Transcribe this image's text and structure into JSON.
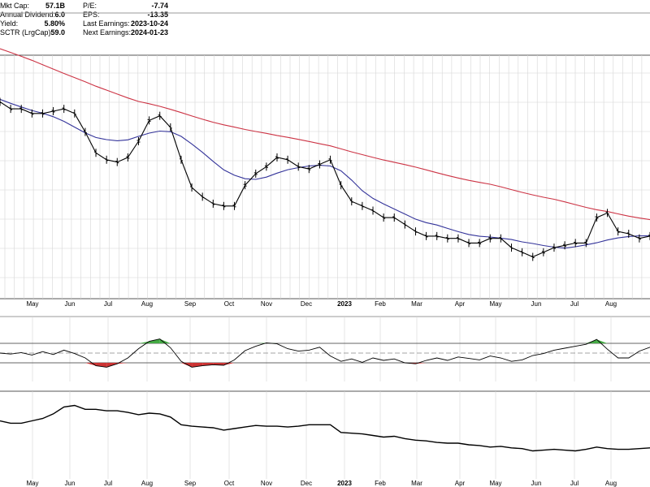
{
  "header": {
    "stats_left": [
      {
        "label": "Mkt Cap:",
        "value": "57.1B"
      },
      {
        "label": "Annual Dividend:",
        "value": "6.0"
      },
      {
        "label": "Yield:",
        "value": "5.80%"
      },
      {
        "label": "SCTR (LrgCap):",
        "value": "59.0"
      }
    ],
    "stats_right": [
      {
        "label": "P/E:",
        "value": "-7.74"
      },
      {
        "label": "EPS:",
        "value": "-13.35"
      },
      {
        "label": "Last Earnings:",
        "value": "2023-10-24"
      },
      {
        "label": "Next Earnings:",
        "value": "2024-01-23"
      }
    ]
  },
  "colors": {
    "price": "#000000",
    "ma_long": "#cc3344",
    "ma_short": "#33339a",
    "grid": "#d6d6d6",
    "osc_overbought_fill": "#44aa44",
    "osc_oversold_fill": "#cc3333"
  },
  "chart_data": [
    {
      "type": "line",
      "panel": "price",
      "x_labels": [
        "May",
        "Jun",
        "Jul",
        "Aug",
        "Sep",
        "Oct",
        "Nov",
        "Dec",
        "2023",
        "Feb",
        "Mar",
        "Apr",
        "May",
        "Jun",
        "Jul",
        "Aug"
      ],
      "x_label_bold": "2023",
      "ylim": [
        0,
        100
      ],
      "grid": true,
      "series": [
        {
          "values": [
            77,
            74,
            74,
            72,
            72,
            73,
            74,
            72,
            64,
            55,
            52,
            51,
            53,
            60,
            69,
            71,
            66,
            52,
            40,
            36,
            33,
            32,
            32,
            41,
            46,
            49,
            53,
            52,
            49,
            48,
            50,
            52,
            41,
            34,
            32,
            30,
            27,
            27,
            24,
            21,
            19,
            19,
            18,
            18,
            16,
            16,
            18,
            18,
            14,
            12,
            10,
            12,
            14,
            15,
            16,
            16,
            27,
            29,
            21,
            20,
            18,
            19
          ]
        },
        {
          "values": [
            100,
            98.4,
            96.7,
            95,
            93.1,
            91.2,
            89.3,
            87.5,
            85.7,
            83.8,
            82.1,
            80.4,
            78.7,
            77.2,
            76.2,
            75.1,
            73.8,
            72.4,
            70.9,
            69.5,
            68.2,
            67.1,
            66.1,
            65.1,
            64.2,
            63.4,
            62.5,
            61.7,
            60.8,
            59.9,
            58.9,
            58,
            56.7,
            55.4,
            54.2,
            53,
            51.9,
            50.9,
            49.9,
            48.8,
            47.6,
            46.4,
            45.2,
            44.1,
            43.1,
            42.2,
            41.4,
            40.3,
            39.1,
            37.9,
            36.8,
            35.8,
            34.9,
            33.8,
            32.6,
            31.4,
            30.4,
            29.6,
            28.6,
            27.6,
            26.8,
            26.1
          ]
        },
        {
          "values": [
            78.1,
            76.4,
            74.8,
            73.3,
            72.1,
            70.6,
            68.6,
            66.1,
            63.6,
            61.6,
            60.7,
            60.2,
            60.6,
            62.1,
            63.5,
            64.4,
            64.1,
            62.1,
            58.8,
            55.2,
            51.3,
            47.6,
            45.3,
            43.8,
            43.5,
            44.5,
            46.2,
            47.7,
            48.6,
            49.3,
            49.6,
            49.3,
            47.2,
            43.2,
            38.6,
            35.3,
            32.9,
            30.7,
            28.5,
            26.3,
            24.8,
            23.8,
            22.3,
            20.9,
            19.7,
            18.9,
            18.6,
            18.1,
            17.5,
            16.5,
            15.8,
            14.9,
            14.2,
            13.8,
            14.4,
            15.2,
            16.1,
            17.3,
            18.2,
            18.8,
            19.1,
            19.1
          ]
        }
      ]
    },
    {
      "type": "line",
      "panel": "oscillator",
      "ylim": [
        0,
        100
      ],
      "bands": [
        30,
        70
      ],
      "centerline": 50,
      "series": [
        {
          "values": [
            50,
            48,
            51,
            46,
            53,
            47,
            56,
            49,
            40,
            24,
            21,
            28,
            40,
            59,
            74,
            79,
            61,
            33,
            21,
            24,
            26,
            25,
            36,
            55,
            64,
            71,
            69,
            59,
            54,
            56,
            62,
            44,
            33,
            38,
            31,
            40,
            35,
            38,
            30,
            28,
            35,
            40,
            35,
            42,
            39,
            36,
            44,
            40,
            33,
            36,
            45,
            49,
            56,
            60,
            64,
            68,
            78,
            58,
            40,
            40,
            54,
            62
          ]
        }
      ]
    },
    {
      "type": "line",
      "panel": "relative-strength",
      "ylim": [
        0,
        100
      ],
      "series": [
        {
          "values": [
            70,
            67,
            67,
            70,
            73,
            79,
            88,
            90,
            85,
            85,
            83,
            83,
            81,
            78,
            80,
            79,
            75,
            65,
            63,
            62,
            61,
            58,
            60,
            62,
            64,
            63,
            63,
            62,
            63,
            65,
            65,
            65,
            55,
            54,
            53,
            51,
            49,
            50,
            47,
            45,
            44,
            42,
            41,
            41,
            39,
            38,
            36,
            37,
            35,
            34,
            31,
            32,
            33,
            32,
            31,
            33,
            36,
            34,
            33,
            33,
            34,
            35
          ]
        }
      ]
    }
  ]
}
